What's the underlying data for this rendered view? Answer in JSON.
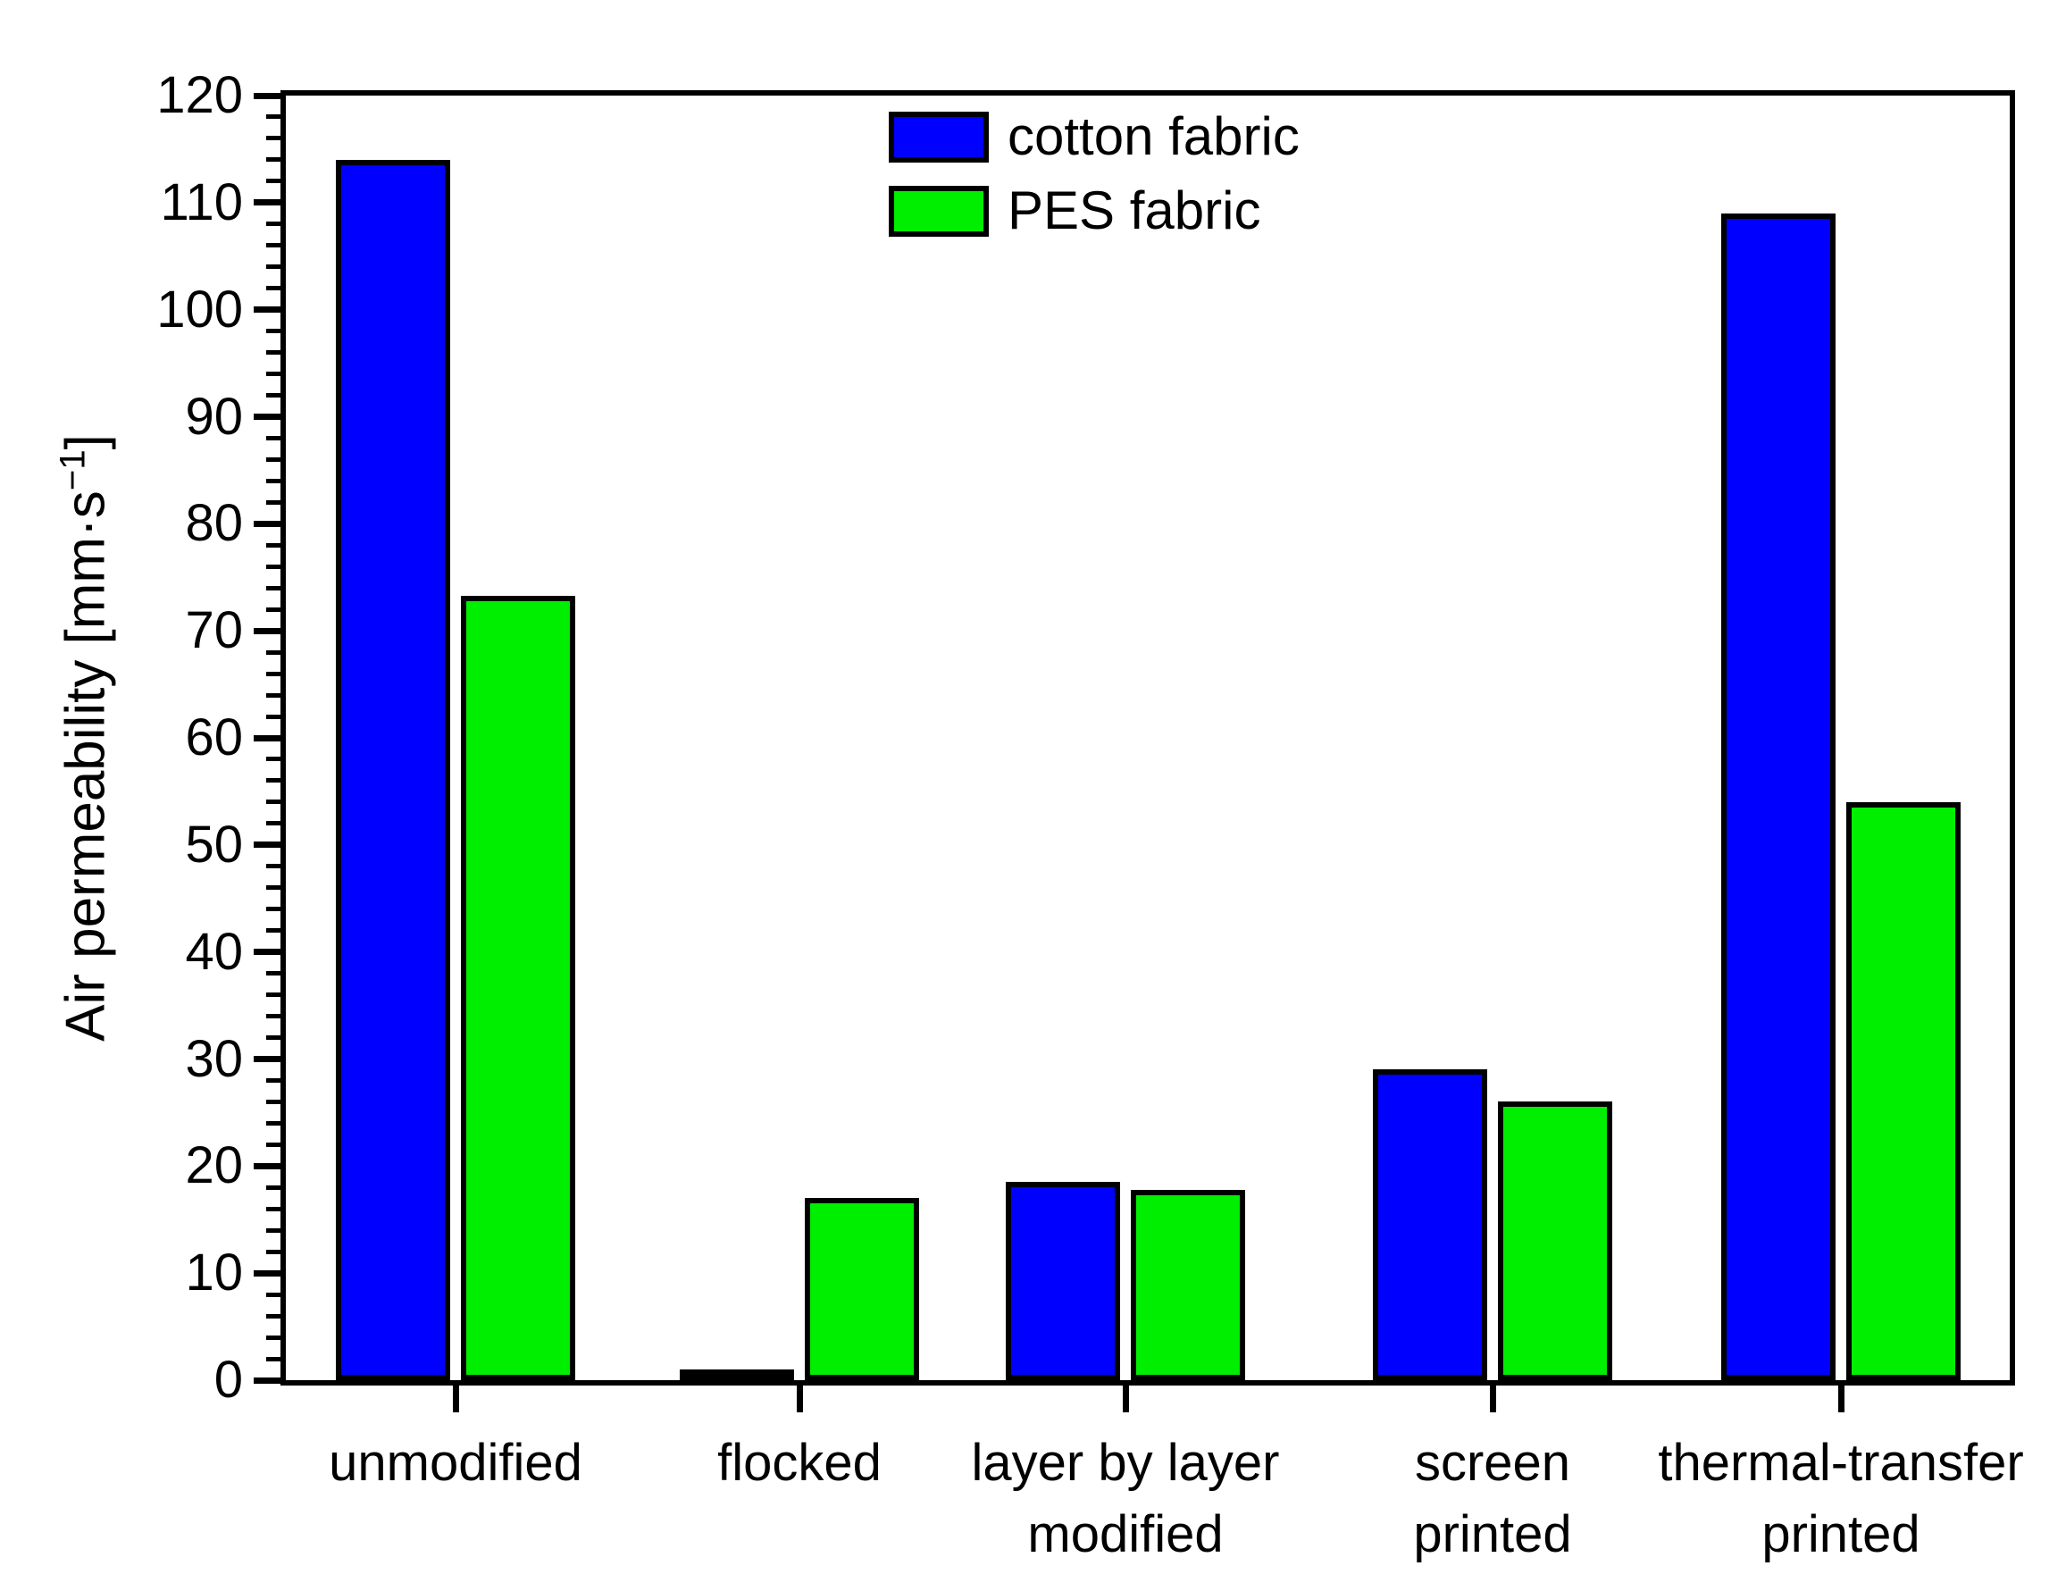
{
  "figure": {
    "background": "#FFFFFF",
    "frame_color": "#000000"
  },
  "chart_data": {
    "type": "bar",
    "title": "",
    "xlabel": "",
    "ylabel": "Air permeability [mm·s⁻¹]",
    "ylabel_parts": {
      "main": "Air permeability [mm·s",
      "sup": "−1",
      "close": "]"
    },
    "categories": [
      "unmodified",
      "flocked",
      "layer by layer modified",
      "screen printed",
      "thermal-transfer printed"
    ],
    "category_label_lines": [
      [
        "unmodified"
      ],
      [
        "flocked"
      ],
      [
        "layer by layer",
        "modified"
      ],
      [
        "screen",
        "printed"
      ],
      [
        "thermal-transfer",
        "printed"
      ]
    ],
    "series": [
      {
        "name": "cotton fabric",
        "color": "#0000FF",
        "values": [
          114,
          0.4,
          18.5,
          29,
          109
        ]
      },
      {
        "name": "PES fabric",
        "color": "#00EE00",
        "values": [
          73.3,
          17,
          17.8,
          26,
          54
        ]
      }
    ],
    "ylim": [
      0,
      120
    ],
    "y_major_step": 10,
    "y_minor_step": 2,
    "y_tick_labels": [
      "0",
      "10",
      "20",
      "30",
      "40",
      "50",
      "60",
      "70",
      "80",
      "90",
      "100",
      "110",
      "120"
    ],
    "grid": false,
    "legend_position": "top-center-inside",
    "bar_edge_color": "#000000"
  }
}
